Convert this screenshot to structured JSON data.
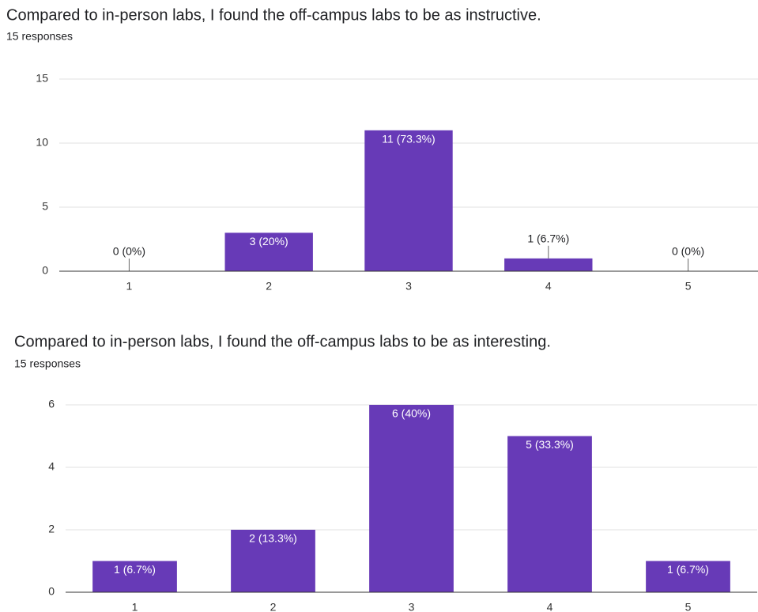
{
  "chart_data": [
    {
      "type": "bar",
      "title": "Compared to in-person labs, I found the off-campus labs to be as instructive.",
      "subtitle": "15 responses",
      "categories": [
        "1",
        "2",
        "3",
        "4",
        "5"
      ],
      "values": [
        0,
        3,
        11,
        1,
        0
      ],
      "value_labels": [
        "0 (0%)",
        "3 (20%)",
        "11 (73.3%)",
        "1 (6.7%)",
        "0 (0%)"
      ],
      "color": "#673ab7",
      "ylim": [
        0,
        15
      ],
      "yticks": [
        0,
        5,
        10,
        15
      ],
      "grid": true
    },
    {
      "type": "bar",
      "title": "Compared to in-person labs, I found the off-campus labs to be as interesting.",
      "subtitle": "15 responses",
      "categories": [
        "1",
        "2",
        "3",
        "4",
        "5"
      ],
      "values": [
        1,
        2,
        6,
        5,
        1
      ],
      "value_labels": [
        "1 (6.7%)",
        "2 (13.3%)",
        "6 (40%)",
        "5 (33.3%)",
        "1 (6.7%)"
      ],
      "color": "#673ab7",
      "ylim": [
        0,
        6
      ],
      "yticks": [
        0,
        2,
        4,
        6
      ],
      "grid": true
    }
  ]
}
